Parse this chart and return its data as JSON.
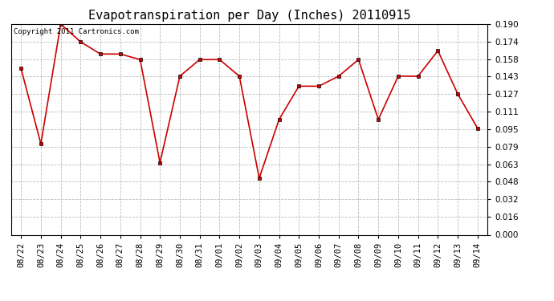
{
  "title": "Evapotranspiration per Day (Inches) 20110915",
  "copyright_text": "Copyright 2011 Cartronics.com",
  "x_labels": [
    "08/22",
    "08/23",
    "08/24",
    "08/25",
    "08/26",
    "08/27",
    "08/28",
    "08/29",
    "08/30",
    "08/31",
    "09/01",
    "09/02",
    "09/03",
    "09/04",
    "09/05",
    "09/06",
    "09/07",
    "09/08",
    "09/09",
    "09/10",
    "09/11",
    "09/12",
    "09/13",
    "09/14"
  ],
  "y_values": [
    0.15,
    0.082,
    0.19,
    0.174,
    0.163,
    0.163,
    0.158,
    0.065,
    0.143,
    0.158,
    0.158,
    0.143,
    0.051,
    0.104,
    0.134,
    0.134,
    0.143,
    0.158,
    0.104,
    0.143,
    0.143,
    0.166,
    0.127,
    0.096
  ],
  "line_color": "#cc0000",
  "marker": "s",
  "marker_size": 2.5,
  "ylim": [
    0.0,
    0.19
  ],
  "yticks": [
    0.0,
    0.016,
    0.032,
    0.048,
    0.063,
    0.079,
    0.095,
    0.111,
    0.127,
    0.143,
    0.158,
    0.174,
    0.19
  ],
  "background_color": "#ffffff",
  "grid_color": "#bbbbbb",
  "title_fontsize": 11,
  "copyright_fontsize": 6.5,
  "tick_fontsize": 7.5
}
